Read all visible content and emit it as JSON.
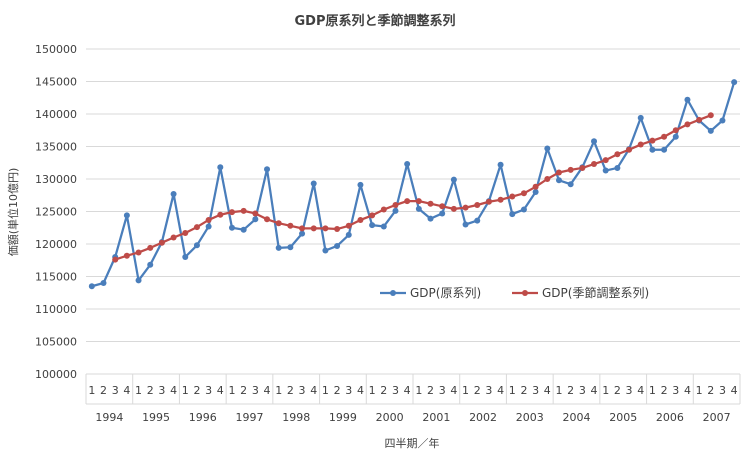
{
  "chart_data": {
    "type": "line",
    "title": "GDP原系列と季節調整系列",
    "xlabel": "四半期／年",
    "ylabel": "価額(単位10億円)",
    "ylim": [
      100000,
      150000
    ],
    "ytick_step": 5000,
    "yticks": [
      "100000",
      "105000",
      "110000",
      "115000",
      "120000",
      "125000",
      "130000",
      "135000",
      "140000",
      "145000",
      "150000"
    ],
    "quarters": [
      "1",
      "2",
      "3",
      "4"
    ],
    "years": [
      "1994",
      "1995",
      "1996",
      "1997",
      "1998",
      "1999",
      "2000",
      "2001",
      "2002",
      "2003",
      "2004",
      "2005",
      "2006",
      "2007"
    ],
    "grid": true,
    "legend_position": "center-right",
    "series": [
      {
        "name": "GDP(原系列)",
        "color": "#4a7ebb",
        "values": [
          113500,
          114000,
          118000,
          124400,
          114400,
          116800,
          120300,
          127700,
          118000,
          119800,
          122700,
          131800,
          122500,
          122200,
          123800,
          131500,
          119400,
          119500,
          121600,
          129300,
          119000,
          119700,
          121400,
          129100,
          122900,
          122700,
          125100,
          132300,
          125400,
          123900,
          124700,
          129900,
          123000,
          123600,
          126600,
          132200,
          124600,
          125300,
          128000,
          134700,
          129800,
          129200,
          131800,
          135800,
          131300,
          131700,
          134600,
          139400,
          134500,
          134500,
          136500,
          142200,
          139000,
          137400,
          139000,
          144900
        ]
      },
      {
        "name": "GDP(季節調整系列)",
        "color": "#be4b48",
        "values": [
          null,
          null,
          117600,
          118200,
          118700,
          119400,
          120200,
          121000,
          121700,
          122600,
          123700,
          124500,
          124900,
          125100,
          124700,
          123800,
          123200,
          122800,
          122400,
          122400,
          122400,
          122300,
          122800,
          123700,
          124400,
          125300,
          126000,
          126600,
          126600,
          126200,
          125800,
          125400,
          125600,
          126000,
          126500,
          126800,
          127300,
          127800,
          128800,
          130000,
          131000,
          131400,
          131700,
          132300,
          132900,
          133800,
          134500,
          135300,
          135900,
          136500,
          137500,
          138400,
          139100,
          139800,
          null,
          null
        ]
      }
    ]
  }
}
